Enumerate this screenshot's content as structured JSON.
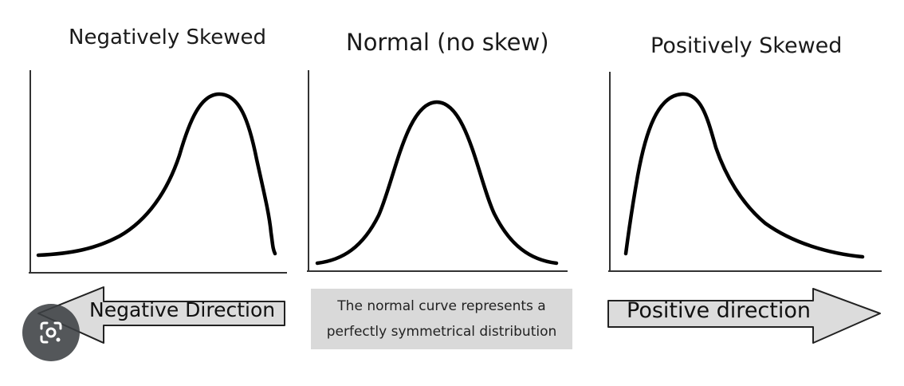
{
  "panels": [
    {
      "id": "negative",
      "title": "Negatively Skewed"
    },
    {
      "id": "normal",
      "title": "Normal (no skew)"
    },
    {
      "id": "positive",
      "title": "Positively Skewed"
    }
  ],
  "arrows": {
    "negative": {
      "label": "Negative Direction",
      "direction": "left"
    },
    "positive": {
      "label": "Positive direction",
      "direction": "right"
    }
  },
  "note": {
    "line1": "The normal curve represents a",
    "line2": "perfectly symmetrical distribution"
  },
  "colors": {
    "curve": "#000000",
    "axis": "#333333",
    "arrow_fill": "#dcdcdc",
    "note_background": "#d9d9d9",
    "lens_button": "#3c4043"
  },
  "icons": {
    "lens": "google-lens-icon"
  }
}
